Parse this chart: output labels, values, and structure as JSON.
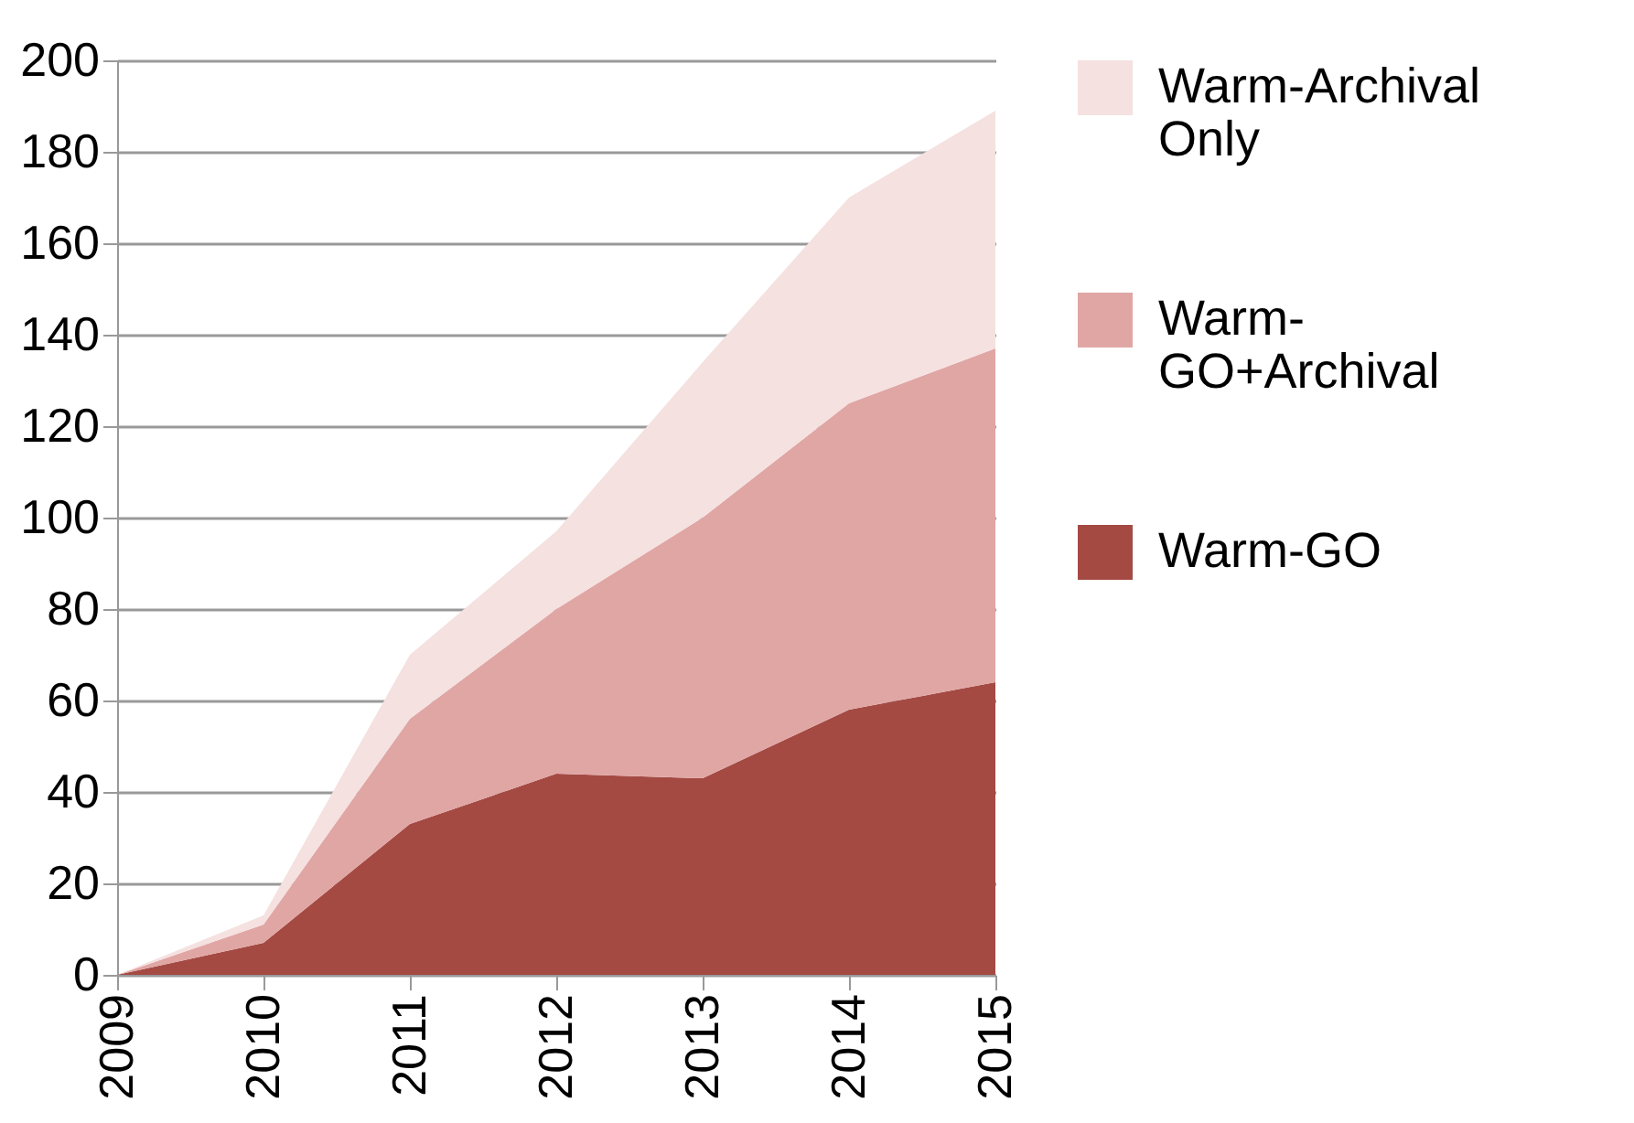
{
  "chart_data": {
    "type": "area",
    "stacked": true,
    "categories": [
      "2009",
      "2010",
      "2011",
      "2012",
      "2013",
      "2014",
      "2015"
    ],
    "series": [
      {
        "name": "Warm-GO",
        "color": "#a44a43",
        "values": [
          0,
          7,
          33,
          44,
          43,
          58,
          64
        ]
      },
      {
        "name": "Warm-GO+Archival",
        "color": "#e0a6a4",
        "values": [
          0,
          4,
          23,
          36,
          57,
          67,
          73
        ]
      },
      {
        "name": "Warm-Archival Only",
        "color": "#f4e1e0",
        "values": [
          0,
          2,
          14,
          17,
          34,
          45,
          52
        ]
      }
    ],
    "ylim": [
      0,
      200
    ],
    "yticks": [
      0,
      20,
      40,
      60,
      80,
      100,
      120,
      140,
      160,
      180,
      200
    ],
    "grid": "y",
    "legend": "right"
  }
}
